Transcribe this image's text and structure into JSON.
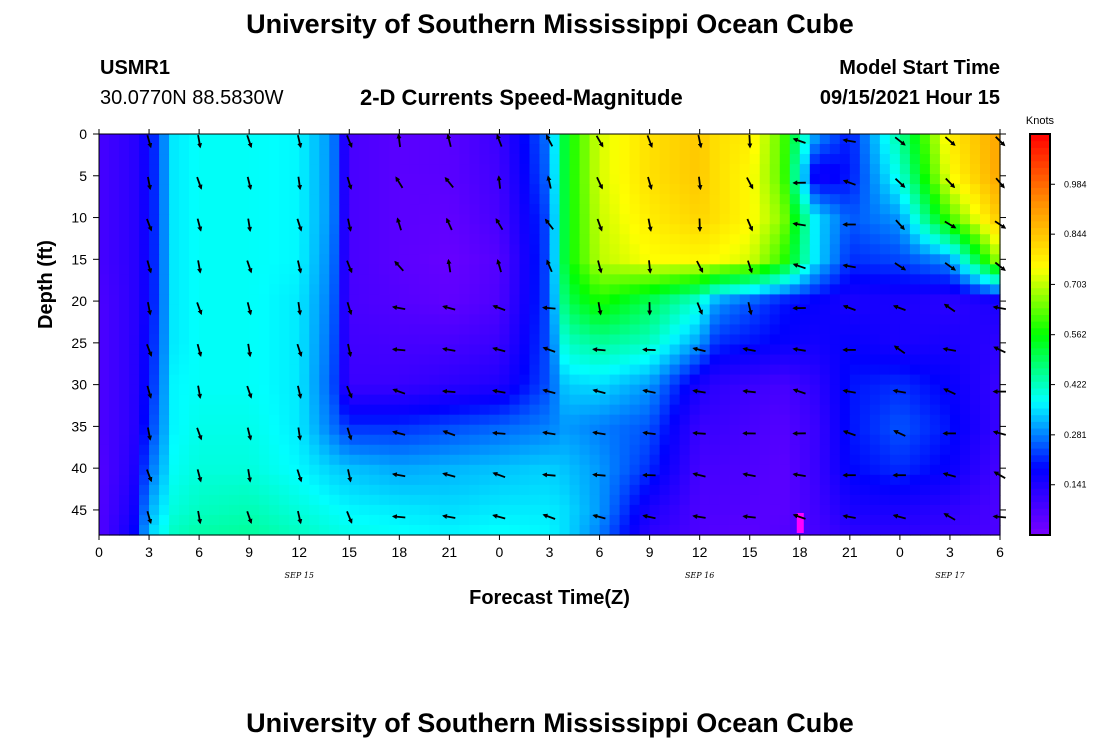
{
  "header": {
    "title_top": "University of Southern Mississippi Ocean Cube",
    "title_bottom": "University of Southern Mississippi Ocean Cube",
    "station": "USMR1",
    "coords": "30.0770N  88.5830W",
    "subtitle": "2-D Currents Speed-Magnitude",
    "model_label": "Model Start Time",
    "model_time": "09/15/2021 Hour 15"
  },
  "chart_data": {
    "type": "heatmap",
    "xlabel": "Forecast Time(Z)",
    "ylabel": "Depth (ft)",
    "x_tick_labels": [
      "0",
      "3",
      "6",
      "9",
      "12",
      "15",
      "18",
      "21",
      "0",
      "3",
      "6",
      "9",
      "12",
      "15",
      "18",
      "21",
      "0",
      "3",
      "6"
    ],
    "x_range_hours": [
      0,
      54
    ],
    "y_ticks": [
      0,
      5,
      10,
      15,
      20,
      25,
      30,
      35,
      40,
      45
    ],
    "y_range": [
      0,
      48
    ],
    "date_labels": [
      {
        "label": "SEP 15",
        "hour": 12
      },
      {
        "label": "SEP 16",
        "hour": 36
      },
      {
        "label": "SEP 17",
        "hour": 51
      }
    ],
    "colorbar": {
      "unit": "Knots",
      "min": 0.0,
      "max": 1.125,
      "ticks": [
        0.141,
        0.281,
        0.422,
        0.562,
        0.703,
        0.844,
        0.984
      ],
      "tick_labels": [
        "0.141",
        "0.281",
        "0.422",
        "0.562",
        "0.703",
        "0.844",
        "0.984"
      ]
    },
    "arrow_hours": [
      3,
      6,
      9,
      12,
      15,
      18,
      21,
      24,
      27,
      30,
      33,
      36,
      39,
      42,
      45,
      48,
      51,
      54
    ],
    "arrow_depths": [
      0,
      5,
      10,
      15,
      20,
      25,
      30,
      35,
      40,
      45
    ],
    "speed_field": {
      "depths": [
        0,
        5,
        10,
        15,
        20,
        25,
        30,
        35,
        40,
        45,
        48
      ],
      "hours": [
        0,
        2,
        3,
        4.5,
        6,
        9,
        12,
        14,
        15,
        18,
        21,
        24,
        27,
        28,
        30,
        33,
        36,
        37,
        39,
        41,
        43,
        45,
        48,
        51,
        54
      ],
      "rows": [
        [
          0.08,
          0.12,
          0.18,
          0.36,
          0.38,
          0.38,
          0.37,
          0.29,
          0.08,
          0.05,
          0.05,
          0.1,
          0.28,
          0.55,
          0.72,
          0.8,
          0.84,
          0.8,
          0.78,
          0.62,
          0.3,
          0.2,
          0.45,
          0.78,
          0.9
        ],
        [
          0.08,
          0.12,
          0.18,
          0.36,
          0.38,
          0.38,
          0.37,
          0.29,
          0.08,
          0.05,
          0.05,
          0.09,
          0.27,
          0.55,
          0.72,
          0.8,
          0.84,
          0.8,
          0.76,
          0.62,
          0.15,
          0.2,
          0.4,
          0.75,
          0.9
        ],
        [
          0.08,
          0.12,
          0.18,
          0.36,
          0.38,
          0.38,
          0.37,
          0.29,
          0.08,
          0.05,
          0.04,
          0.08,
          0.25,
          0.55,
          0.71,
          0.78,
          0.82,
          0.8,
          0.76,
          0.66,
          0.35,
          0.25,
          0.3,
          0.62,
          0.85
        ],
        [
          0.08,
          0.12,
          0.18,
          0.36,
          0.38,
          0.38,
          0.37,
          0.28,
          0.08,
          0.05,
          0.03,
          0.06,
          0.25,
          0.55,
          0.7,
          0.75,
          0.76,
          0.75,
          0.72,
          0.6,
          0.35,
          0.22,
          0.24,
          0.3,
          0.7
        ],
        [
          0.07,
          0.12,
          0.18,
          0.36,
          0.38,
          0.38,
          0.36,
          0.27,
          0.08,
          0.06,
          0.04,
          0.07,
          0.25,
          0.5,
          0.58,
          0.5,
          0.4,
          0.3,
          0.25,
          0.2,
          0.18,
          0.15,
          0.15,
          0.12,
          0.15
        ],
        [
          0.07,
          0.12,
          0.19,
          0.36,
          0.38,
          0.38,
          0.36,
          0.26,
          0.09,
          0.08,
          0.08,
          0.1,
          0.25,
          0.42,
          0.45,
          0.42,
          0.3,
          0.22,
          0.2,
          0.18,
          0.16,
          0.18,
          0.15,
          0.15,
          0.12
        ],
        [
          0.07,
          0.12,
          0.2,
          0.37,
          0.38,
          0.38,
          0.36,
          0.25,
          0.1,
          0.1,
          0.12,
          0.14,
          0.25,
          0.34,
          0.35,
          0.3,
          0.15,
          0.12,
          0.1,
          0.08,
          0.12,
          0.2,
          0.22,
          0.18,
          0.1
        ],
        [
          0.07,
          0.12,
          0.22,
          0.37,
          0.39,
          0.39,
          0.36,
          0.27,
          0.22,
          0.22,
          0.24,
          0.26,
          0.28,
          0.3,
          0.28,
          0.25,
          0.1,
          0.1,
          0.08,
          0.06,
          0.1,
          0.2,
          0.25,
          0.2,
          0.1
        ],
        [
          0.06,
          0.13,
          0.26,
          0.38,
          0.4,
          0.4,
          0.37,
          0.34,
          0.33,
          0.31,
          0.32,
          0.33,
          0.34,
          0.33,
          0.3,
          0.22,
          0.08,
          0.08,
          0.07,
          0.05,
          0.1,
          0.19,
          0.22,
          0.18,
          0.08
        ],
        [
          0.06,
          0.15,
          0.31,
          0.4,
          0.42,
          0.43,
          0.4,
          0.38,
          0.37,
          0.36,
          0.35,
          0.36,
          0.36,
          0.35,
          0.3,
          0.15,
          0.07,
          0.07,
          0.06,
          0.05,
          0.09,
          0.15,
          0.15,
          0.12,
          0.07
        ],
        [
          0.06,
          0.17,
          0.34,
          0.42,
          0.44,
          0.45,
          0.42,
          0.4,
          0.39,
          0.38,
          0.37,
          0.38,
          0.37,
          0.35,
          0.28,
          0.12,
          0.07,
          0.06,
          0.05,
          0.06,
          0.08,
          0.12,
          0.12,
          0.1,
          0.07
        ]
      ]
    }
  },
  "colors": {
    "colorbar_stops": [
      "#7a00ff",
      "#0000ff",
      "#00ffff",
      "#00ff00",
      "#ffff00",
      "#ff8c00",
      "#ff0000"
    ],
    "arrow": "#000000",
    "bottom_marker": "#ff00ff"
  }
}
